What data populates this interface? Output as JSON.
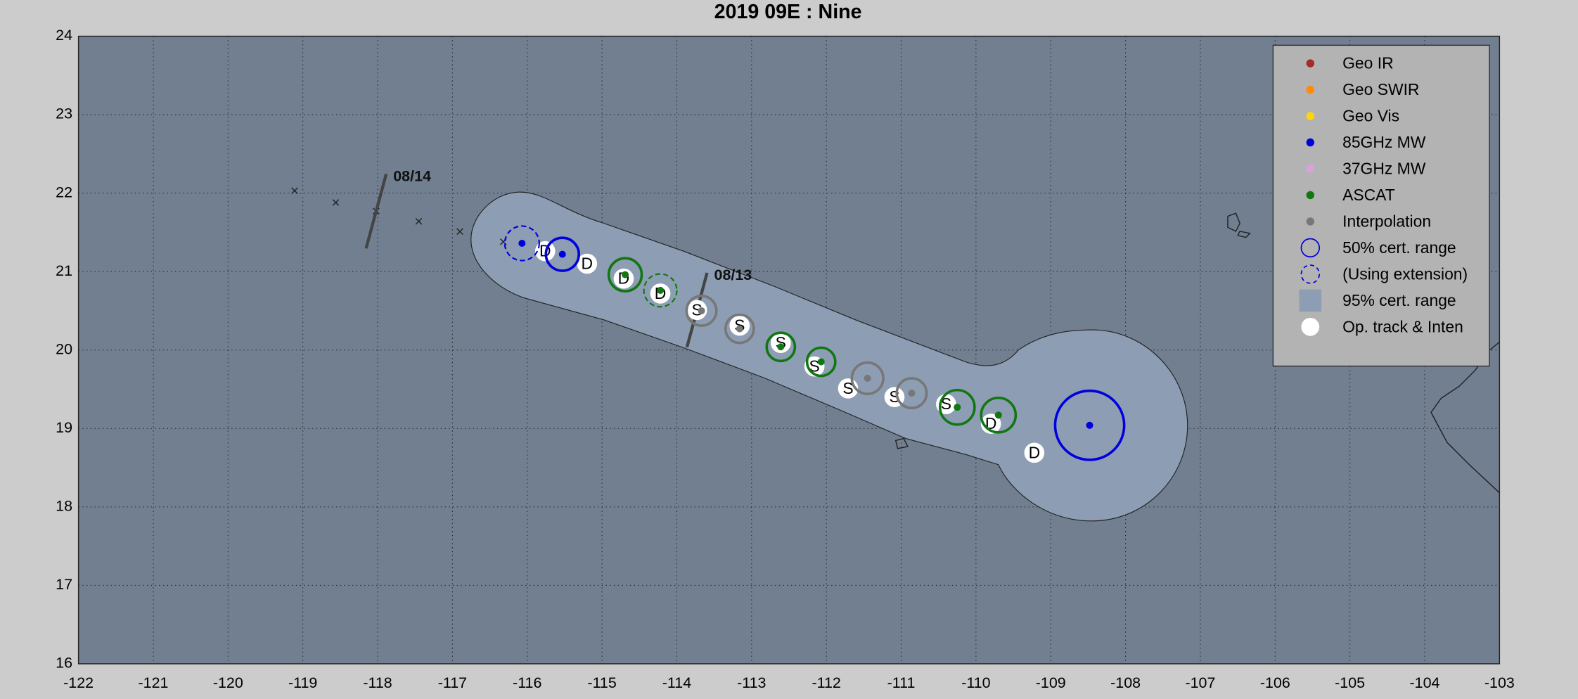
{
  "chart_data": {
    "type": "storm-track",
    "title": "2019  09E :  Nine",
    "xlim": [
      -122,
      -103
    ],
    "ylim": [
      16,
      24
    ],
    "xticks": [
      -122,
      -121,
      -120,
      -119,
      -118,
      -117,
      -116,
      -115,
      -114,
      -113,
      -112,
      -111,
      -110,
      -109,
      -108,
      -107,
      -106,
      -105,
      -104,
      -103
    ],
    "yticks": [
      16,
      17,
      18,
      19,
      20,
      21,
      22,
      23,
      24
    ],
    "grid": true,
    "best_track": {
      "lon": [
        -119.11,
        -118.56,
        -118.02,
        -117.45,
        -116.9,
        -116.32
      ],
      "lat": [
        22.03,
        21.88,
        21.77,
        21.64,
        21.51,
        21.38
      ]
    },
    "date_marks": [
      {
        "text": "08/14",
        "lon": -118.02,
        "lat": 21.77
      },
      {
        "text": "08/13",
        "lon": -113.73,
        "lat": 20.51
      }
    ],
    "op_track": {
      "lon": [
        -115.76,
        -115.2,
        -114.71,
        -114.22,
        -113.73,
        -113.16,
        -112.61,
        -112.16,
        -111.71,
        -111.09,
        -110.4,
        -109.8,
        -109.22
      ],
      "lat": [
        21.26,
        21.1,
        20.91,
        20.72,
        20.51,
        20.31,
        20.09,
        19.79,
        19.51,
        19.4,
        19.31,
        19.06,
        18.69
      ],
      "labels": [
        "D",
        "D",
        "D",
        "D",
        "S",
        "S",
        "S",
        "S",
        "S",
        "S",
        "S",
        "D",
        "D"
      ]
    },
    "fixes": {
      "lon": [
        -116.07,
        -115.53,
        -114.69,
        -114.22,
        -113.67,
        -113.16,
        -112.61,
        -112.07,
        -111.45,
        -110.86,
        -110.25,
        -109.7,
        -108.48
      ],
      "lat": [
        21.36,
        21.22,
        20.96,
        20.76,
        20.5,
        20.27,
        20.04,
        19.85,
        19.64,
        19.45,
        19.27,
        19.17,
        19.04
      ],
      "radius": [
        0.22,
        0.21,
        0.21,
        0.21,
        0.19,
        0.18,
        0.18,
        0.18,
        0.2,
        0.19,
        0.22,
        0.22,
        0.44
      ],
      "colors": [
        "#0000dd",
        "#0000dd",
        "#117711",
        "#117711",
        "#777777",
        "#777777",
        "#117711",
        "#117711",
        "#777777",
        "#777777",
        "#117711",
        "#117711",
        "#0000dd"
      ],
      "dashed": [
        true,
        false,
        false,
        true,
        false,
        false,
        false,
        false,
        false,
        false,
        false,
        false,
        false
      ]
    },
    "legend": [
      {
        "label": "Geo IR",
        "color": "#a52a2a",
        "marker": "dot"
      },
      {
        "label": "Geo SWIR",
        "color": "#ff8c00",
        "marker": "dot"
      },
      {
        "label": "Geo Vis",
        "color": "#ffd700",
        "marker": "dot"
      },
      {
        "label": "85GHz MW",
        "color": "#0000dd",
        "marker": "dot"
      },
      {
        "label": "37GHz MW",
        "color": "#dda0dd",
        "marker": "dot"
      },
      {
        "label": "ASCAT",
        "color": "#117711",
        "marker": "dot"
      },
      {
        "label": "Interpolation",
        "color": "#777777",
        "marker": "dot"
      },
      {
        "label": "50% cert. range",
        "color": "#0000dd",
        "marker": "circle"
      },
      {
        "label": "(Using extension)",
        "color": "#0000dd",
        "marker": "dashed-circle"
      },
      {
        "label": "95% cert. range",
        "color": "#8d9db3",
        "marker": "square"
      },
      {
        "label": "Op. track & Inten",
        "color": "#ffffff",
        "marker": "big-dot"
      }
    ]
  }
}
